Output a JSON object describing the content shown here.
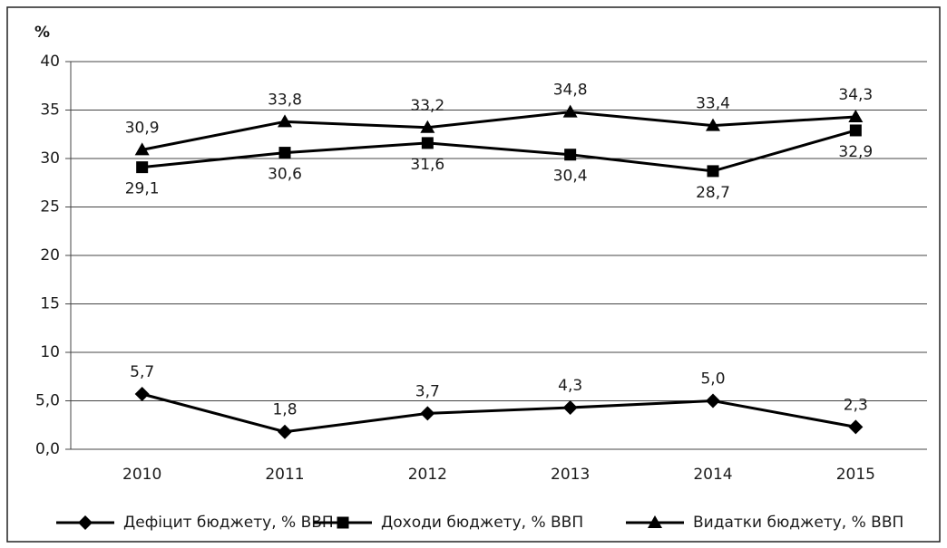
{
  "chart_data": {
    "type": "line",
    "y_label": "%",
    "categories": [
      "2010",
      "2011",
      "2012",
      "2013",
      "2014",
      "2015"
    ],
    "series": [
      {
        "name": "Дефіцит бюджету, % ВВП",
        "color": "#000000",
        "marker": "diamond",
        "label_side": "above",
        "values": [
          5.7,
          1.8,
          3.7,
          4.3,
          5.0,
          2.3
        ],
        "value_labels": [
          "5,7",
          "1,8",
          "3,7",
          "4,3",
          "5,0",
          "2,3"
        ]
      },
      {
        "name": "Доходи бюджету, % ВВП",
        "color": "#000000",
        "marker": "square",
        "label_side": "below",
        "values": [
          29.1,
          30.6,
          31.6,
          30.4,
          28.7,
          32.9
        ],
        "value_labels": [
          "29,1",
          "30,6",
          "31,6",
          "30,4",
          "28,7",
          "32,9"
        ]
      },
      {
        "name": "Видатки бюджету, % ВВП",
        "color": "#000000",
        "marker": "triangle",
        "label_side": "above",
        "values": [
          30.9,
          33.8,
          33.2,
          34.8,
          33.4,
          34.3
        ],
        "value_labels": [
          "30,9",
          "33,8",
          "33,2",
          "34,8",
          "33,4",
          "34,3"
        ]
      }
    ],
    "ylim": [
      0,
      40
    ],
    "yticks": [
      {
        "value": 0,
        "label": "0,0"
      },
      {
        "value": 5,
        "label": "5,0"
      },
      10,
      15,
      20,
      25,
      30,
      35,
      40
    ],
    "grid": true,
    "legend": "bottom"
  }
}
